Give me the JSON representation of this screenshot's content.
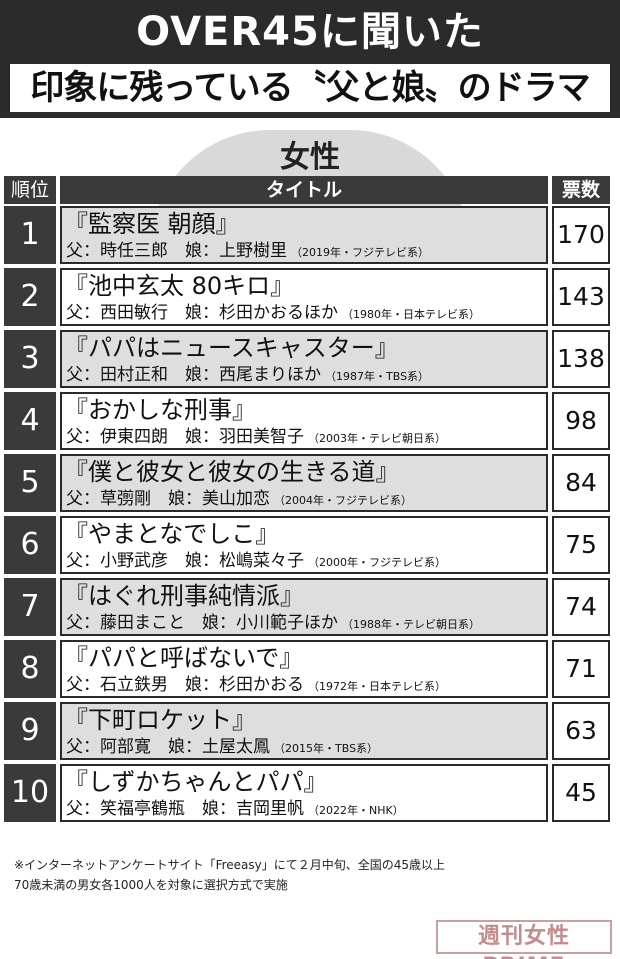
{
  "header": {
    "title": "OVER45に聞いた",
    "subtitle": "印象に残っている〝父と娘〟のドラマ"
  },
  "category": "女性",
  "table": {
    "headers": {
      "rank": "順位",
      "title": "タイトル",
      "votes": "票数"
    },
    "rows": [
      {
        "rank": "1",
        "title": "『監察医 朝顔』",
        "cast": "父：時任三郎　娘：上野樹里",
        "note": "（2019年・フジテレビ系）",
        "votes": "170"
      },
      {
        "rank": "2",
        "title": "『池中玄太 80キロ』",
        "cast": "父：西田敏行　娘：杉田かおるほか",
        "note": "（1980年・日本テレビ系）",
        "votes": "143"
      },
      {
        "rank": "3",
        "title": "『パパはニュースキャスター』",
        "cast": "父：田村正和　娘：西尾まりほか",
        "note": "（1987年・TBS系）",
        "votes": "138"
      },
      {
        "rank": "4",
        "title": "『おかしな刑事』",
        "cast": "父：伊東四朗　娘：羽田美智子",
        "note": "（2003年・テレビ朝日系）",
        "votes": "98"
      },
      {
        "rank": "5",
        "title": "『僕と彼女と彼女の生きる道』",
        "cast": "父：草彅剛　娘：美山加恋",
        "note": "（2004年・フジテレビ系）",
        "votes": "84"
      },
      {
        "rank": "6",
        "title": "『やまとなでしこ』",
        "cast": "父：小野武彦　娘：松嶋菜々子",
        "note": "（2000年・フジテレビ系）",
        "votes": "75"
      },
      {
        "rank": "7",
        "title": "『はぐれ刑事純情派』",
        "cast": "父：藤田まこと　娘：小川範子ほか",
        "note": "（1988年・テレビ朝日系）",
        "votes": "74"
      },
      {
        "rank": "8",
        "title": "『パパと呼ばないで』",
        "cast": "父：石立鉄男　娘：杉田かおる",
        "note": "（1972年・日本テレビ系）",
        "votes": "71"
      },
      {
        "rank": "9",
        "title": "『下町ロケット』",
        "cast": "父：阿部寛　娘：土屋太鳳",
        "note": "（2015年・TBS系）",
        "votes": "63"
      },
      {
        "rank": "10",
        "title": "『しずかちゃんとパパ』",
        "cast": "父：笑福亭鶴瓶　娘：吉岡里帆",
        "note": "（2022年・NHK）",
        "votes": "45"
      }
    ]
  },
  "footnote": {
    "line1": "※インターネットアンケートサイト「Freeasy」にて２月中旬、全国の45歳以上",
    "line2": "70歳未満の男女各1000人を対象に選択方式で実施"
  },
  "logo": "週刊女性PRIME"
}
